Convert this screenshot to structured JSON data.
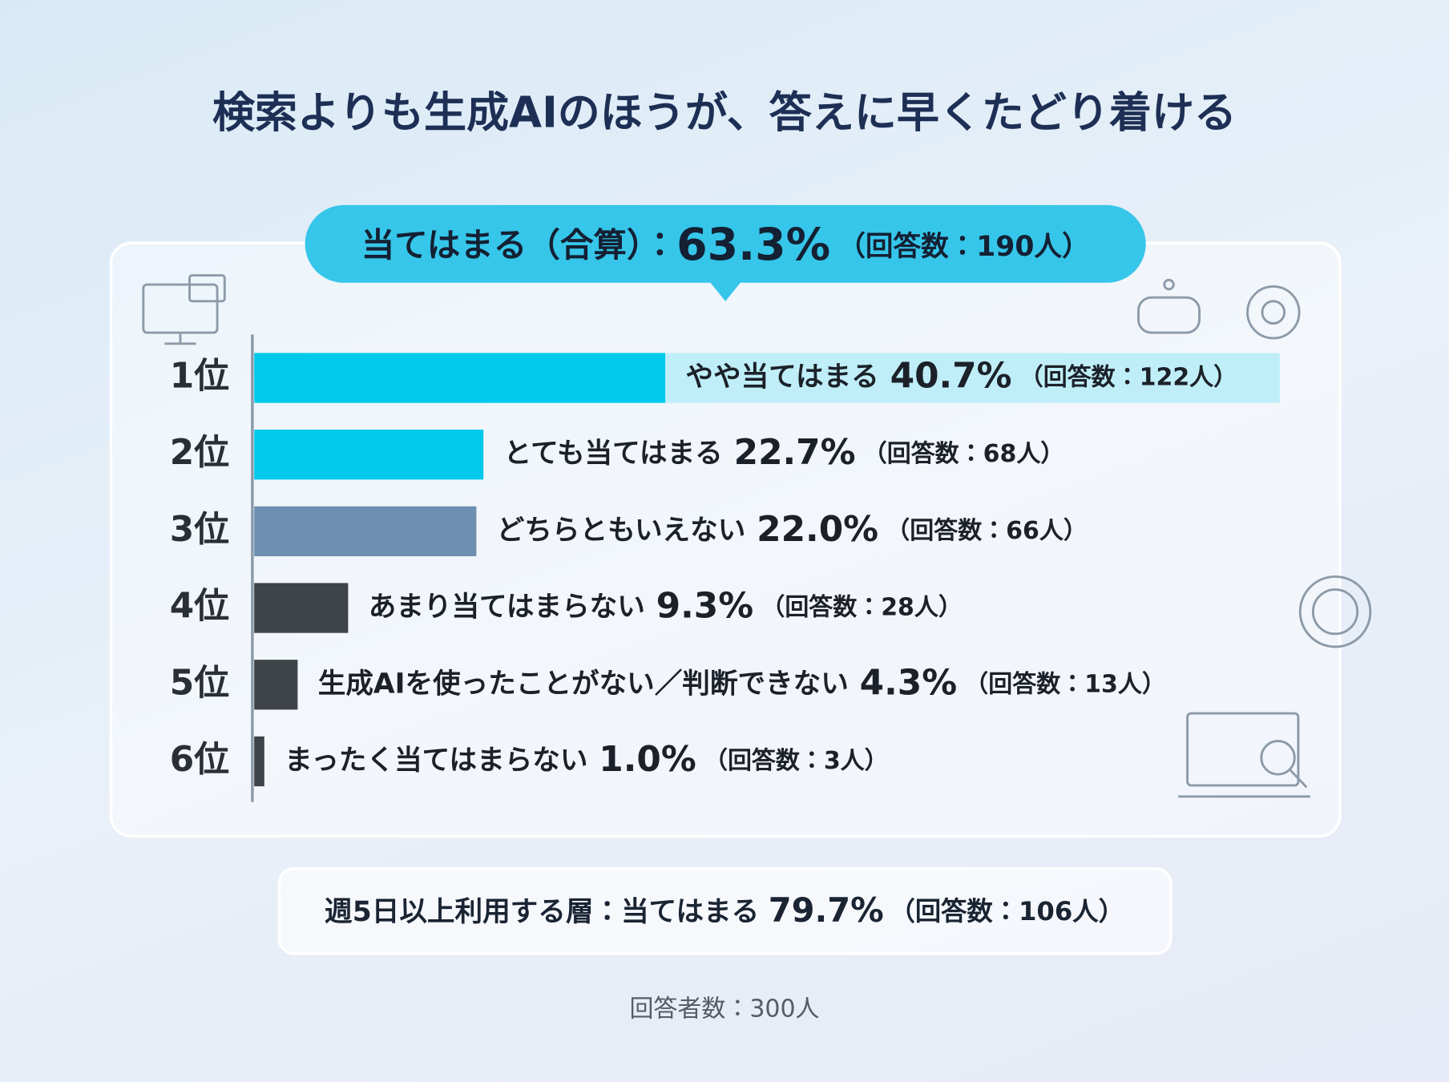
{
  "chart_data": {
    "type": "bar",
    "orientation": "horizontal",
    "title": "検索よりも生成AIのほうが、答えに早くたどり着ける",
    "summary": {
      "label": "当てはまる（合算）：",
      "value_label": "63.3%",
      "count_label": "（回答数：190人）"
    },
    "ranks": [
      "1位",
      "2位",
      "3位",
      "4位",
      "5位",
      "6位"
    ],
    "categories": [
      "やや当てはまる",
      "とても当てはまる",
      "どちらともいえない",
      "あまり当てはまらない",
      "生成AIを使ったことがない／判断できない",
      "まったく当てはまらない"
    ],
    "values": [
      40.7,
      22.7,
      22.0,
      9.3,
      4.3,
      1.0
    ],
    "value_labels": [
      "40.7%",
      "22.7%",
      "22.0%",
      "9.3%",
      "4.3%",
      "1.0%"
    ],
    "count_labels": [
      "（回答数：122人）",
      "（回答数：68人）",
      "（回答数：66人）",
      "（回答数：28人）",
      "（回答数：13人）",
      "（回答数：3人）"
    ],
    "colors": [
      "#00c9ec",
      "#00c9ec",
      "#6e8fb1",
      "#3f4448",
      "#3f4448",
      "#3f4448"
    ],
    "xlim": [
      0,
      100
    ],
    "callout": {
      "label": "週5日以上利用する層：当てはまる",
      "value_label": "79.7%",
      "count_label": "（回答数：106人）"
    },
    "note": "回答者数：300人"
  }
}
